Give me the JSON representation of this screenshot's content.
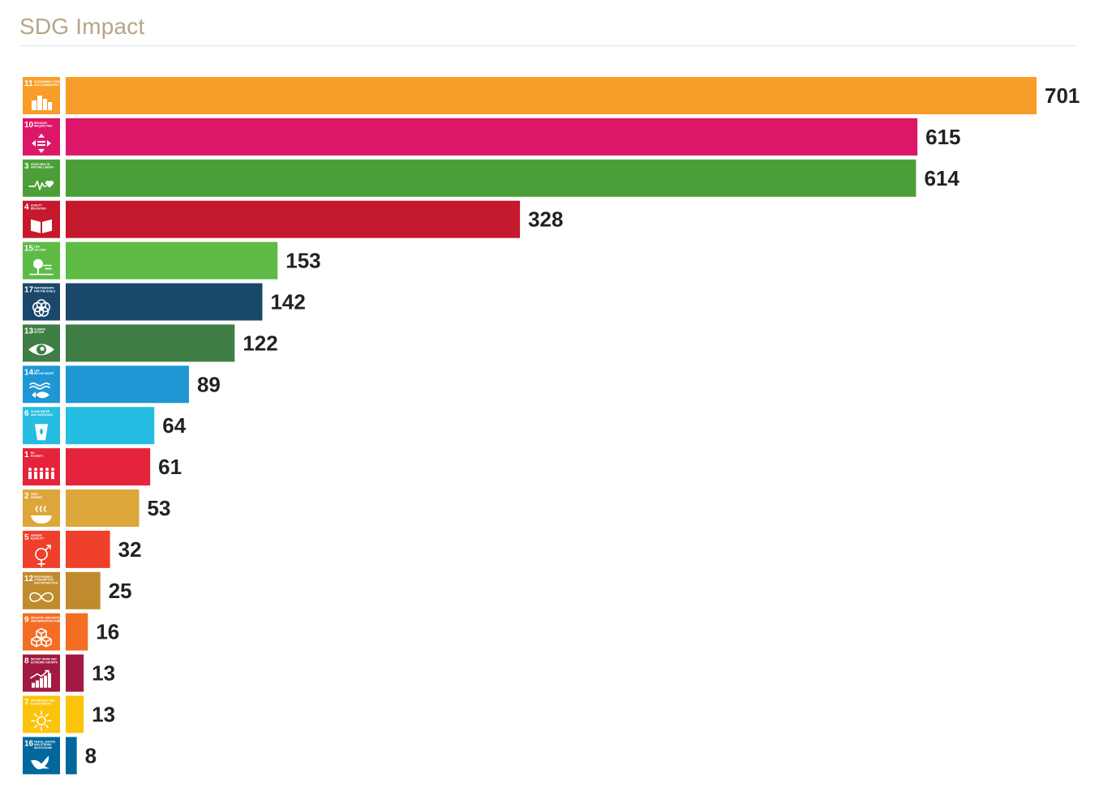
{
  "title": "SDG Impact",
  "chart_data": {
    "type": "bar",
    "orientation": "horizontal",
    "xlim": [
      0,
      701
    ],
    "grid": false,
    "legend": "none",
    "bars": [
      {
        "goal": "11",
        "caption": [
          "SUSTAINABLE CITIES",
          "AND COMMUNITIES"
        ],
        "value": 701,
        "color": "#f99d2a",
        "icon": "city-icon"
      },
      {
        "goal": "10",
        "caption": [
          "REDUCED",
          "INEQUALITIES"
        ],
        "value": 615,
        "color": "#dd1767",
        "icon": "equality-arrows-icon"
      },
      {
        "goal": "3",
        "caption": [
          "GOOD HEALTH",
          "AND WELL-BEING"
        ],
        "value": 614,
        "color": "#4c9f38",
        "icon": "heartbeat-icon"
      },
      {
        "goal": "4",
        "caption": [
          "QUALITY",
          "EDUCATION"
        ],
        "value": 328,
        "color": "#c5192d",
        "icon": "book-icon"
      },
      {
        "goal": "15",
        "caption": [
          "LIFE",
          "ON LAND"
        ],
        "value": 153,
        "color": "#5dbb46",
        "icon": "tree-icon"
      },
      {
        "goal": "17",
        "caption": [
          "PARTNERSHIPS",
          "FOR THE GOALS"
        ],
        "value": 142,
        "color": "#19486a",
        "icon": "rings-icon"
      },
      {
        "goal": "13",
        "caption": [
          "CLIMATE",
          "ACTION"
        ],
        "value": 122,
        "color": "#3f7e44",
        "icon": "eye-globe-icon"
      },
      {
        "goal": "14",
        "caption": [
          "LIFE",
          "BELOW WATER"
        ],
        "value": 89,
        "color": "#1f97d4",
        "icon": "fish-icon"
      },
      {
        "goal": "6",
        "caption": [
          "CLEAN WATER",
          "AND SANITATION"
        ],
        "value": 64,
        "color": "#26bde2",
        "icon": "water-glass-icon"
      },
      {
        "goal": "1",
        "caption": [
          "NO",
          "POVERTY"
        ],
        "value": 61,
        "color": "#e5243b",
        "icon": "family-icon"
      },
      {
        "goal": "2",
        "caption": [
          "ZERO",
          "HUNGER"
        ],
        "value": 53,
        "color": "#dda63a",
        "icon": "bowl-icon"
      },
      {
        "goal": "5",
        "caption": [
          "GENDER",
          "EQUALITY"
        ],
        "value": 32,
        "color": "#ef402b",
        "icon": "gender-icon"
      },
      {
        "goal": "12",
        "caption": [
          "RESPONSIBLE",
          "CONSUMPTION",
          "AND PRODUCTION"
        ],
        "value": 25,
        "color": "#bf8b2e",
        "icon": "infinity-icon"
      },
      {
        "goal": "9",
        "caption": [
          "INDUSTRY, INNOVATION",
          "AND INFRASTRUCTURE"
        ],
        "value": 16,
        "color": "#f36d25",
        "icon": "cubes-icon"
      },
      {
        "goal": "8",
        "caption": [
          "DECENT WORK AND",
          "ECONOMIC GROWTH"
        ],
        "value": 13,
        "color": "#a21942",
        "icon": "growth-chart-icon"
      },
      {
        "goal": "7",
        "caption": [
          "AFFORDABLE AND",
          "CLEAN ENERGY"
        ],
        "value": 13,
        "color": "#fcc30b",
        "icon": "sun-icon"
      },
      {
        "goal": "16",
        "caption": [
          "PEACE, JUSTICE",
          "AND STRONG",
          "INSTITUTIONS"
        ],
        "value": 8,
        "color": "#00689d",
        "icon": "dove-icon"
      }
    ]
  }
}
